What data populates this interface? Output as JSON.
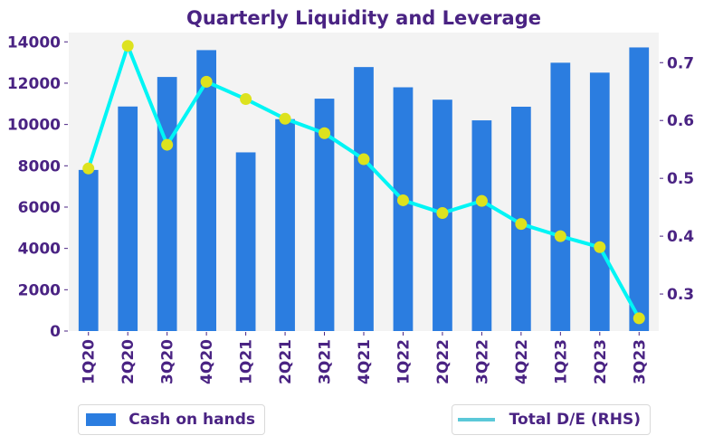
{
  "chart_data": {
    "type": "bar",
    "title": "Quarterly Liquidity and Leverage",
    "xlabel": "",
    "ylabel": "",
    "categories": [
      "1Q20",
      "2Q20",
      "3Q20",
      "4Q20",
      "1Q21",
      "2Q21",
      "3Q21",
      "4Q21",
      "1Q22",
      "2Q22",
      "3Q22",
      "4Q22",
      "1Q23",
      "2Q23",
      "3Q23"
    ],
    "series": [
      {
        "name": "Cash on hands",
        "kind": "bar",
        "axis": "left",
        "color": "#2b7de0",
        "values": [
          7800,
          10870,
          12300,
          13600,
          8650,
          10260,
          11250,
          12780,
          11800,
          11200,
          10200,
          10860,
          12990,
          12510,
          13730
        ]
      },
      {
        "name": "Total D/E (RHS)",
        "kind": "line",
        "axis": "right",
        "color": "#00f5f5",
        "legend_color": "#5bc8d8",
        "marker_color": "#dde21e",
        "values": [
          0.517,
          0.729,
          0.558,
          0.667,
          0.637,
          0.603,
          0.578,
          0.533,
          0.462,
          0.44,
          0.461,
          0.421,
          0.4,
          0.381,
          0.258
        ]
      }
    ],
    "ylim": [
      0,
      14450
    ],
    "yticks": [
      0,
      2000,
      4000,
      6000,
      8000,
      10000,
      12000,
      14000
    ],
    "ylim_right": [
      0.236,
      0.752
    ],
    "yticks_right": [
      0.3,
      0.4,
      0.5,
      0.6,
      0.7
    ],
    "grid": false,
    "background": "#f3f3f3",
    "legend": [
      {
        "label": "Cash on hands",
        "placement": "bottom-left"
      },
      {
        "label": "Total D/E (RHS)",
        "placement": "bottom-right"
      }
    ]
  }
}
